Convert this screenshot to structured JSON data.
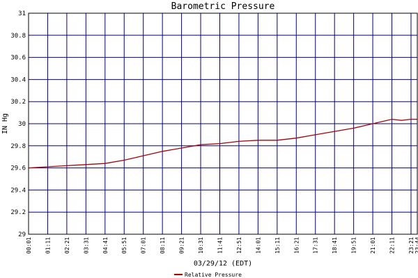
{
  "chart_data": {
    "type": "line",
    "title": "Barometric Pressure",
    "xlabel": "03/29/12 (EDT)",
    "ylabel": "IN Hg",
    "ylim": [
      29,
      31
    ],
    "yticks": [
      "29",
      "29.2",
      "29.4",
      "29.6",
      "29.8",
      "30",
      "30.2",
      "30.4",
      "30.6",
      "30.8",
      "31"
    ],
    "xticks": [
      "00:01",
      "01:11",
      "02:21",
      "03:31",
      "04:41",
      "05:51",
      "07:01",
      "08:11",
      "09:21",
      "10:31",
      "11:41",
      "12:51",
      "14:01",
      "15:11",
      "16:21",
      "17:31",
      "18:41",
      "19:51",
      "21:01",
      "22:11",
      "23:21",
      "23:44"
    ],
    "grid": true,
    "legend_position": "bottom-center",
    "line_color": "#aa0000",
    "grid_color": "#000080",
    "series": [
      {
        "name": "Relative Pressure",
        "x": [
          "00:01",
          "01:11",
          "02:21",
          "03:31",
          "04:41",
          "05:51",
          "07:01",
          "08:11",
          "09:21",
          "10:31",
          "11:41",
          "12:51",
          "14:01",
          "15:11",
          "16:21",
          "17:31",
          "18:41",
          "19:51",
          "21:01",
          "22:11",
          "22:46",
          "23:21",
          "23:44"
        ],
        "values": [
          29.6,
          29.61,
          29.62,
          29.63,
          29.64,
          29.67,
          29.71,
          29.75,
          29.78,
          29.81,
          29.82,
          29.84,
          29.85,
          29.85,
          29.87,
          29.9,
          29.93,
          29.96,
          30.0,
          30.04,
          30.03,
          30.04,
          30.04
        ]
      }
    ]
  }
}
